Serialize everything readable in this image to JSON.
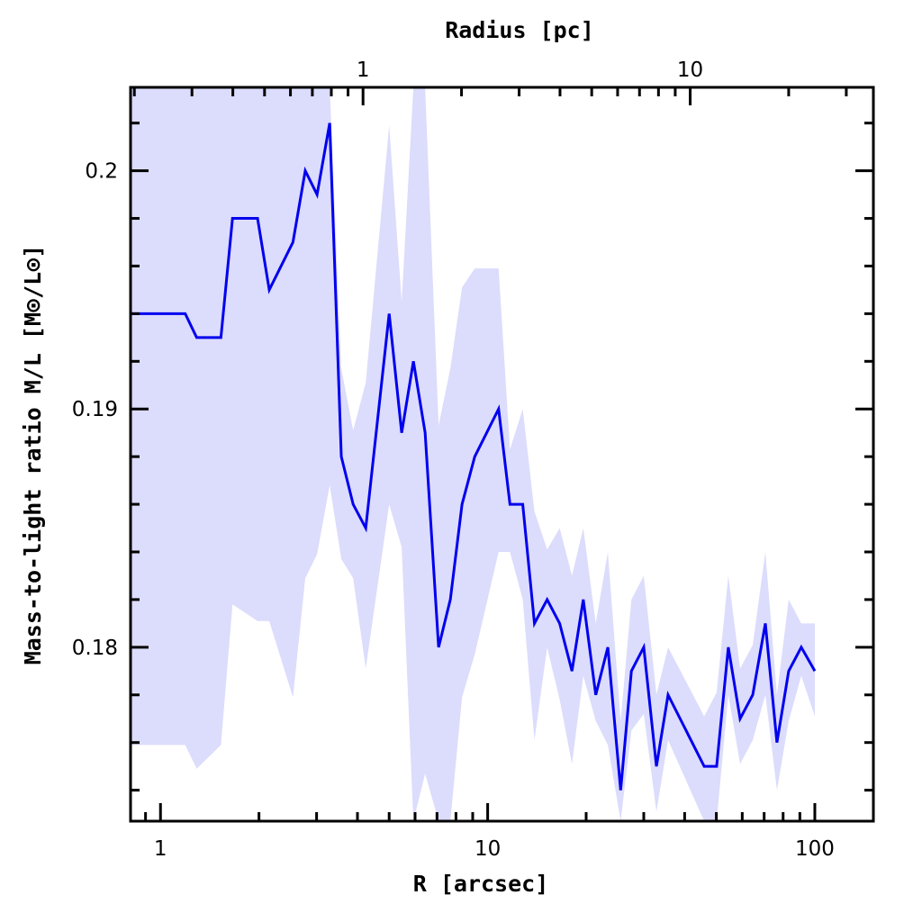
{
  "chart_data": {
    "type": "line",
    "xlabel": "R [arcsec]",
    "ylabel": "Mass-to-light ratio M/L [M⊙/L⊙]",
    "top_xlabel": "Radius [pc]",
    "xscale": "log",
    "xlim": [
      0.81,
      151
    ],
    "ylim": [
      0.1727,
      0.2035
    ],
    "x_ticks": [
      1,
      10,
      100
    ],
    "x_tick_labels": [
      "1",
      "10",
      "100"
    ],
    "y_ticks": [
      0.18,
      0.19,
      0.2
    ],
    "y_tick_labels": [
      "0.18",
      "0.19",
      "0.2"
    ],
    "y_minor_step": 0.002,
    "top_pc_per_arcsec": 0.2404,
    "top_ticks": [
      1,
      10
    ],
    "top_tick_labels": [
      "1",
      "10"
    ],
    "grid": false,
    "line_color": "#0000ee",
    "band_color": "#dcdcfc",
    "x": [
      0.81,
      1.19,
      1.29,
      1.53,
      1.66,
      1.98,
      2.15,
      2.54,
      2.77,
      3.01,
      3.29,
      3.57,
      3.88,
      4.24,
      5.0,
      5.46,
      5.93,
      6.44,
      7.08,
      7.69,
      8.35,
      9.13,
      10.8,
      11.7,
      12.8,
      13.9,
      15.2,
      16.6,
      18.1,
      19.6,
      21.4,
      23.3,
      25.5,
      27.5,
      30.0,
      32.8,
      35.6,
      45.9,
      50.1,
      54.4,
      59.1,
      64.6,
      70.6,
      76.6,
      83.2,
      90.9,
      100
    ],
    "series": [
      {
        "name": "M/L",
        "values": [
          0.194,
          0.194,
          0.193,
          0.193,
          0.198,
          0.198,
          0.195,
          0.197,
          0.2,
          0.199,
          0.202,
          0.188,
          0.186,
          0.185,
          0.194,
          0.189,
          0.192,
          0.189,
          0.18,
          0.182,
          0.186,
          0.188,
          0.19,
          0.186,
          0.186,
          0.181,
          0.182,
          0.181,
          0.179,
          0.182,
          0.178,
          0.18,
          0.174,
          0.179,
          0.18,
          0.175,
          0.178,
          0.175,
          0.175,
          0.18,
          0.177,
          0.178,
          0.181,
          0.176,
          0.179,
          0.18,
          0.179
        ]
      },
      {
        "name": "upper",
        "values": [
          0.2035,
          0.2035,
          0.2035,
          0.2035,
          0.2035,
          0.2035,
          0.2035,
          0.2035,
          0.2035,
          0.2035,
          0.2035,
          0.1917,
          0.1891,
          0.1911,
          0.2019,
          0.1945,
          0.2035,
          0.2035,
          0.1893,
          0.1917,
          0.1951,
          0.1959,
          0.1959,
          0.1883,
          0.19,
          0.1857,
          0.1841,
          0.185,
          0.183,
          0.185,
          0.181,
          0.184,
          0.1769,
          0.182,
          0.183,
          0.178,
          0.18,
          0.1771,
          0.1781,
          0.183,
          0.1791,
          0.1801,
          0.184,
          0.178,
          0.182,
          0.181,
          0.181
        ]
      },
      {
        "name": "lower",
        "values": [
          0.1759,
          0.1759,
          0.1749,
          0.1759,
          0.1818,
          0.1811,
          0.1811,
          0.1779,
          0.1829,
          0.1839,
          0.1868,
          0.1837,
          0.1829,
          0.1791,
          0.186,
          0.1842,
          0.1727,
          0.1747,
          0.1727,
          0.1727,
          0.1779,
          0.1797,
          0.184,
          0.184,
          0.182,
          0.1761,
          0.18,
          0.1778,
          0.1751,
          0.1788,
          0.1769,
          0.1759,
          0.1727,
          0.1765,
          0.1772,
          0.1731,
          0.1761,
          0.1727,
          0.1727,
          0.178,
          0.1751,
          0.1761,
          0.178,
          0.174,
          0.1769,
          0.1788,
          0.1771
        ]
      }
    ]
  }
}
